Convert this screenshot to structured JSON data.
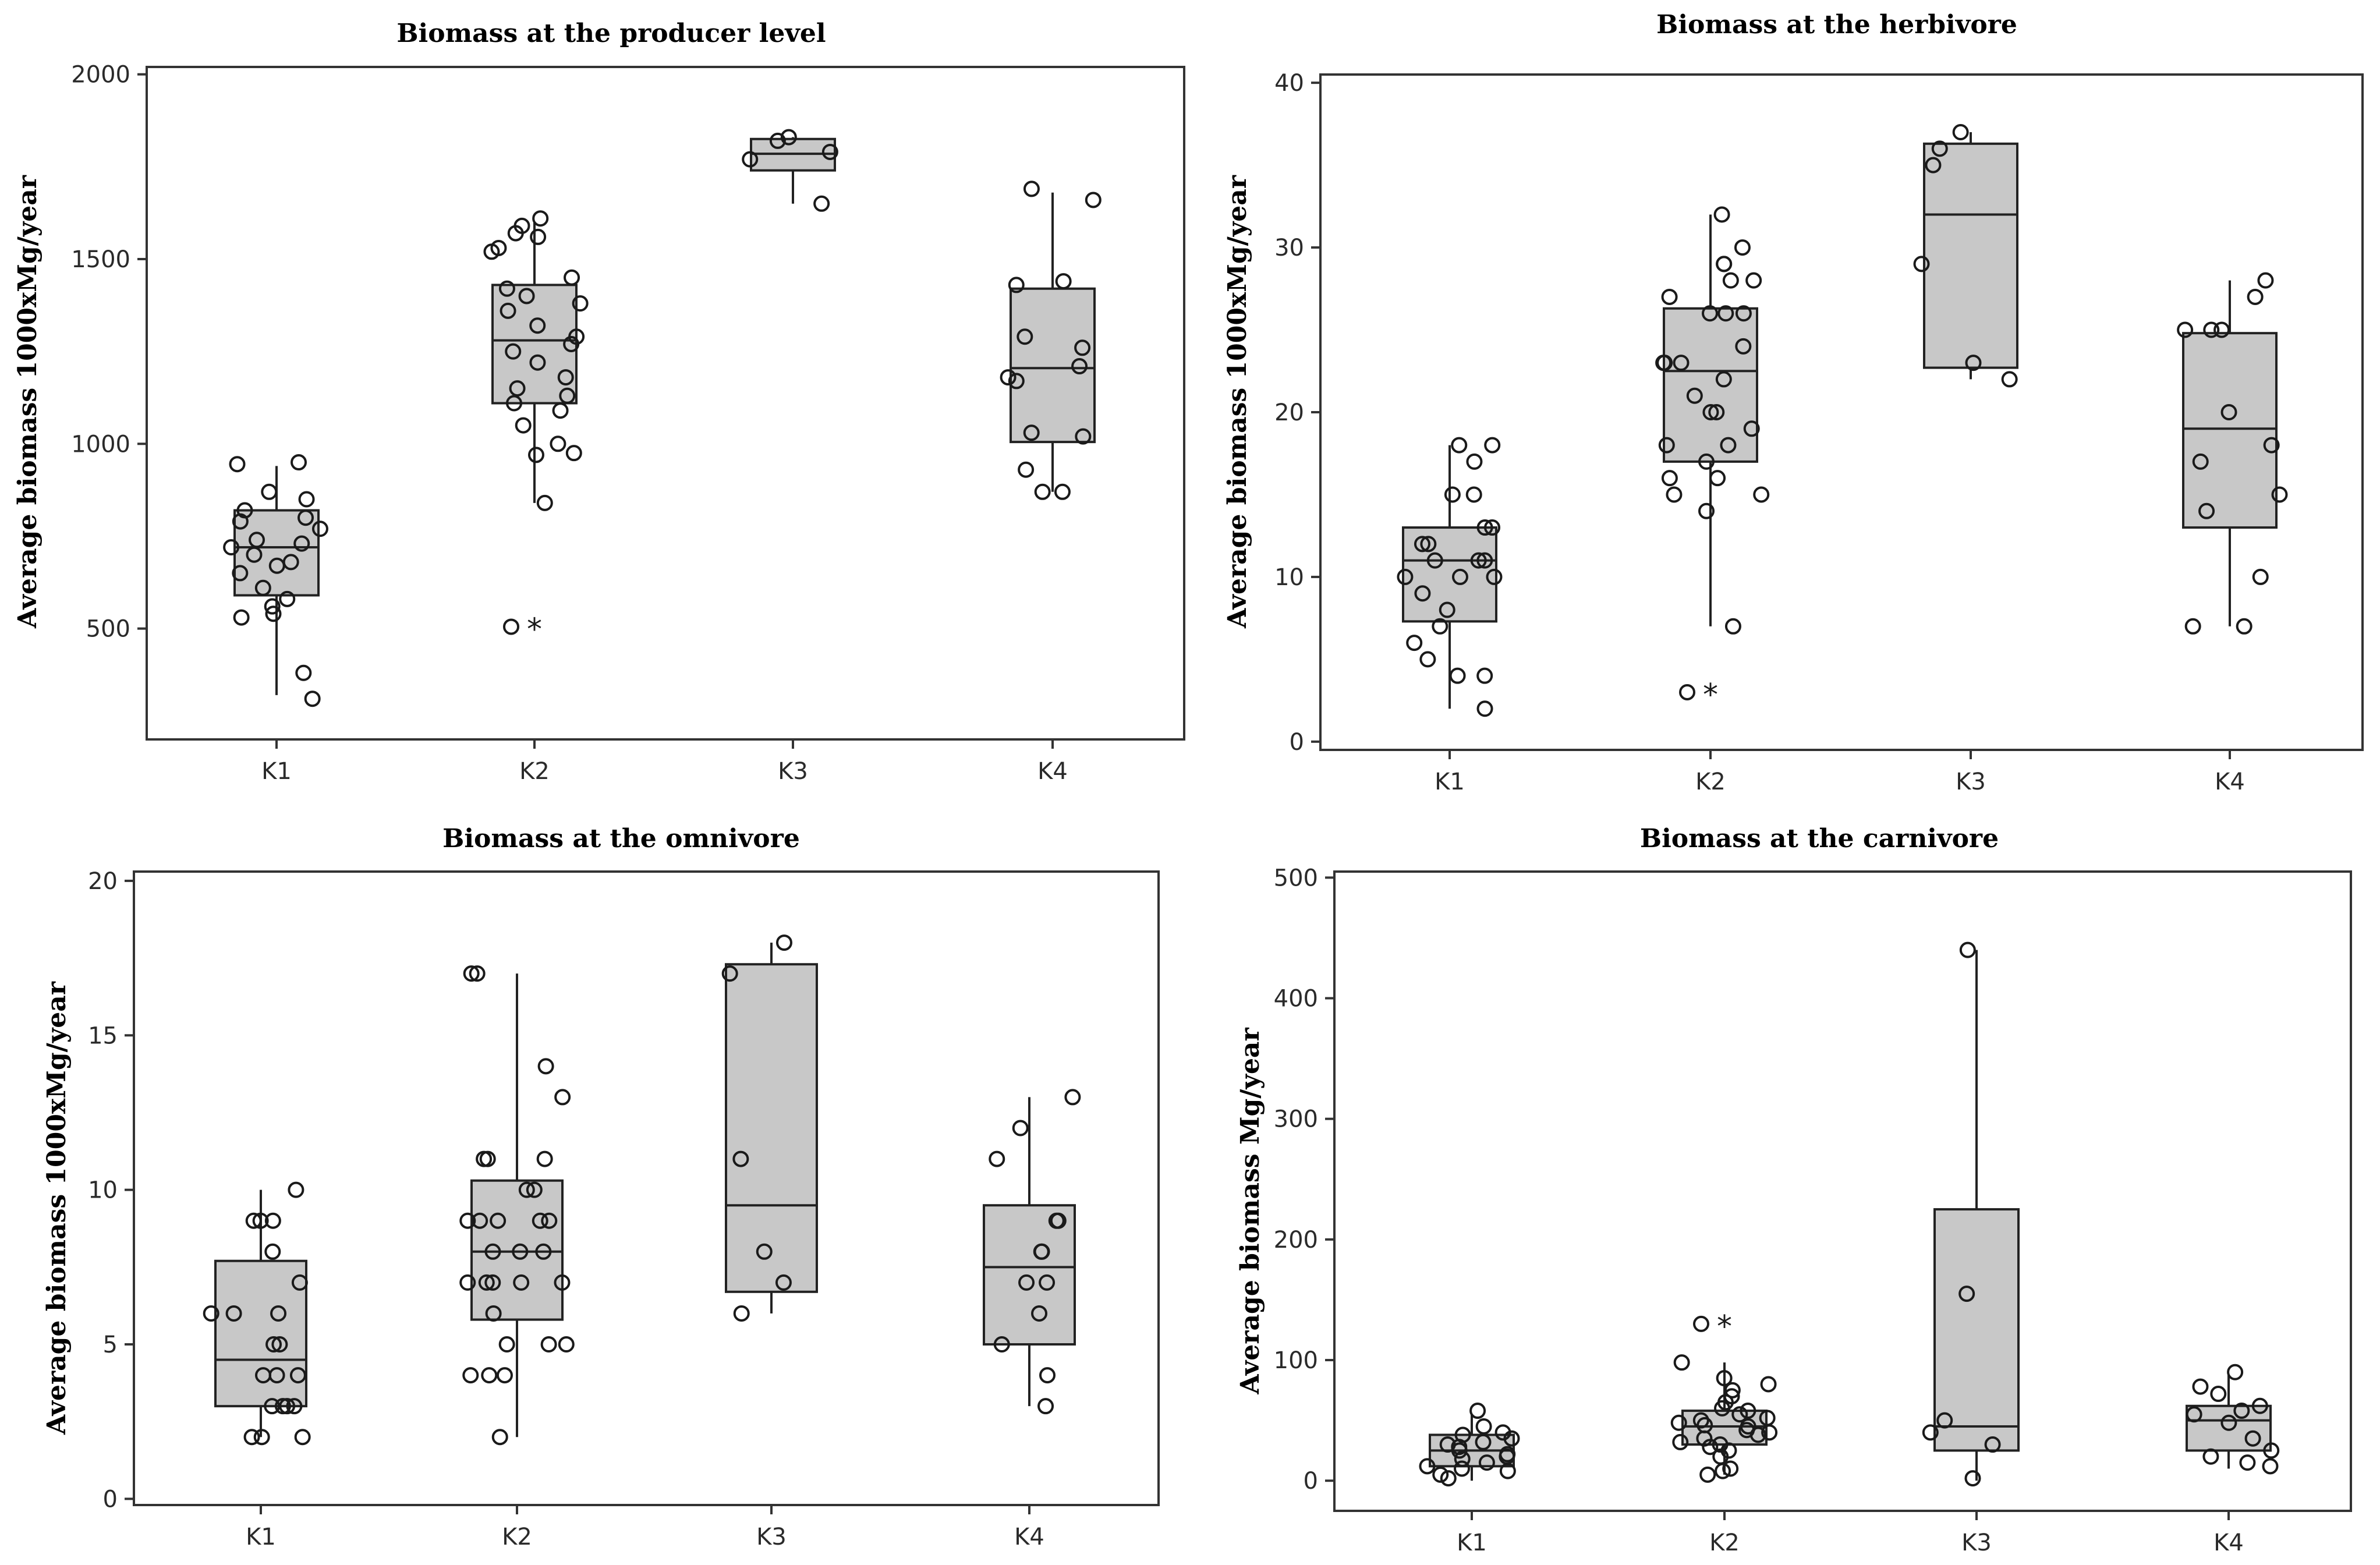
{
  "chart_data": [
    {
      "type": "box",
      "title": "Biomass at the producer level",
      "ylabel": "Average biomass 1000xMg/year",
      "xlabel": "",
      "categories": [
        "K1",
        "K2",
        "K3",
        "K4"
      ],
      "yticks": [
        500,
        1000,
        1500,
        2000
      ],
      "ylim": [
        200,
        2020
      ],
      "boxes": [
        {
          "q1": 590,
          "median": 720,
          "q3": 820,
          "whisker_low": 320,
          "whisker_high": 940,
          "outliers": [],
          "points": [
            950,
            945,
            870,
            850,
            820,
            800,
            790,
            770,
            740,
            730,
            720,
            700,
            680,
            670,
            650,
            610,
            580,
            560,
            540,
            530,
            380,
            310
          ]
        },
        {
          "q1": 1110,
          "median": 1280,
          "q3": 1430,
          "whisker_low": 840,
          "whisker_high": 1600,
          "outliers": [
            505
          ],
          "points": [
            1610,
            1590,
            1570,
            1560,
            1530,
            1520,
            1450,
            1420,
            1400,
            1380,
            1360,
            1320,
            1290,
            1270,
            1250,
            1220,
            1180,
            1150,
            1130,
            1110,
            1090,
            1050,
            1000,
            975,
            970,
            840,
            505
          ]
        },
        {
          "q1": 1740,
          "median": 1785,
          "q3": 1825,
          "whisker_low": 1650,
          "whisker_high": 1830,
          "outliers": [],
          "points": [
            1830,
            1820,
            1790,
            1770,
            1650
          ]
        },
        {
          "q1": 1005,
          "median": 1205,
          "q3": 1420,
          "whisker_low": 870,
          "whisker_high": 1680,
          "outliers": [],
          "points": [
            1690,
            1660,
            1440,
            1430,
            1290,
            1260,
            1210,
            1180,
            1170,
            1030,
            1020,
            930,
            870,
            870
          ]
        }
      ]
    },
    {
      "type": "box",
      "title": "Biomass at the herbivore",
      "ylabel": "Average biomass 1000xMg/year",
      "xlabel": "",
      "categories": [
        "K1",
        "K2",
        "K3",
        "K4"
      ],
      "yticks": [
        0,
        10,
        20,
        30,
        40
      ],
      "ylim": [
        -0.5,
        40.5
      ],
      "boxes": [
        {
          "q1": 7.3,
          "median": 11,
          "q3": 13,
          "whisker_low": 2,
          "whisker_high": 18,
          "outliers": [],
          "points": [
            18,
            18,
            17,
            15,
            15,
            13,
            13,
            12,
            12,
            11,
            11,
            11,
            10,
            10,
            10,
            9,
            8,
            7,
            6,
            5,
            4,
            4,
            2
          ]
        },
        {
          "q1": 17,
          "median": 22.5,
          "q3": 26.3,
          "whisker_low": 7,
          "whisker_high": 32,
          "outliers": [
            3
          ],
          "points": [
            32,
            30,
            29,
            29,
            28,
            28,
            27,
            26,
            26,
            26,
            24,
            23,
            23,
            23,
            22,
            21,
            20,
            20,
            19,
            18,
            18,
            17,
            16,
            16,
            15,
            15,
            14,
            7,
            3
          ]
        },
        {
          "q1": 22.7,
          "median": 32,
          "q3": 36.3,
          "whisker_low": 22,
          "whisker_high": 37,
          "outliers": [],
          "points": [
            37,
            36,
            35,
            29,
            23,
            22
          ]
        },
        {
          "q1": 13,
          "median": 19,
          "q3": 24.8,
          "whisker_low": 7,
          "whisker_high": 28,
          "outliers": [],
          "points": [
            28,
            27,
            25,
            25,
            25,
            20,
            18,
            17,
            15,
            14,
            10,
            7,
            7
          ]
        }
      ]
    },
    {
      "type": "box",
      "title": "Biomass at the omnivore",
      "ylabel": "Average biomass 1000xMg/year",
      "xlabel": "",
      "categories": [
        "K1",
        "K2",
        "K3",
        "K4"
      ],
      "yticks": [
        0,
        5,
        10,
        15,
        20
      ],
      "ylim": [
        -0.2,
        20.3
      ],
      "boxes": [
        {
          "q1": 3,
          "median": 4.5,
          "q3": 7.7,
          "whisker_low": 2,
          "whisker_high": 10,
          "outliers": [],
          "points": [
            10,
            9,
            9,
            9,
            8,
            7,
            6,
            6,
            6,
            5,
            5,
            4,
            4,
            4,
            3,
            3,
            3,
            3,
            2,
            2,
            2
          ]
        },
        {
          "q1": 5.8,
          "median": 8,
          "q3": 10.3,
          "whisker_low": 2,
          "whisker_high": 17,
          "outliers": [],
          "points": [
            17,
            17,
            14,
            13,
            11,
            11,
            11,
            10,
            10,
            9,
            9,
            9,
            9,
            9,
            8,
            8,
            8,
            7,
            7,
            7,
            7,
            7,
            6,
            5,
            5,
            5,
            4,
            4,
            4,
            2
          ]
        },
        {
          "q1": 6.7,
          "median": 9.5,
          "q3": 17.3,
          "whisker_low": 6,
          "whisker_high": 18,
          "outliers": [],
          "points": [
            18,
            17,
            11,
            8,
            7,
            6
          ]
        },
        {
          "q1": 5,
          "median": 7.5,
          "q3": 9.5,
          "whisker_low": 3,
          "whisker_high": 13,
          "outliers": [],
          "points": [
            13,
            12,
            11,
            9,
            9,
            8,
            8,
            7,
            7,
            6,
            5,
            4,
            3
          ]
        }
      ]
    },
    {
      "type": "box",
      "title": "Biomass at the carnivore",
      "ylabel": "Average biomass Mg/year",
      "xlabel": "",
      "categories": [
        "K1",
        "K2",
        "K3",
        "K4"
      ],
      "yticks": [
        0,
        100,
        200,
        300,
        400,
        500
      ],
      "ylim": [
        -25,
        505
      ],
      "boxes": [
        {
          "q1": 12,
          "median": 25,
          "q3": 38,
          "whisker_low": 0,
          "whisker_high": 55,
          "outliers": [],
          "points": [
            58,
            45,
            40,
            38,
            35,
            32,
            30,
            28,
            25,
            22,
            20,
            18,
            15,
            12,
            10,
            8,
            5,
            2
          ]
        },
        {
          "q1": 30,
          "median": 45,
          "q3": 58,
          "whisker_low": 5,
          "whisker_high": 98,
          "outliers": [
            130
          ],
          "points": [
            130,
            98,
            85,
            80,
            75,
            70,
            65,
            60,
            58,
            55,
            52,
            50,
            48,
            46,
            45,
            42,
            40,
            38,
            35,
            32,
            30,
            28,
            25,
            20,
            10,
            8,
            5
          ]
        },
        {
          "q1": 25,
          "median": 45,
          "q3": 225,
          "whisker_low": 0,
          "whisker_high": 440,
          "outliers": [],
          "points": [
            440,
            155,
            50,
            40,
            30,
            2
          ]
        },
        {
          "q1": 25,
          "median": 50,
          "q3": 62,
          "whisker_low": 10,
          "whisker_high": 88,
          "outliers": [],
          "points": [
            90,
            78,
            72,
            62,
            58,
            55,
            48,
            35,
            25,
            20,
            15,
            12
          ]
        }
      ]
    }
  ]
}
